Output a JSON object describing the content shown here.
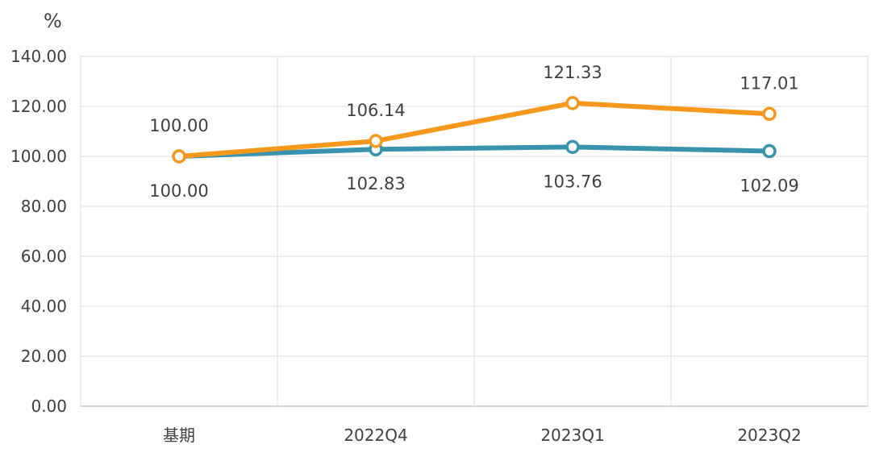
{
  "chart_data": {
    "type": "line",
    "y_unit": "%",
    "categories": [
      "基期",
      "2022Q4",
      "2023Q1",
      "2023Q2"
    ],
    "ylim": [
      0,
      140
    ],
    "y_ticks": [
      "0.00",
      "20.00",
      "40.00",
      "60.00",
      "80.00",
      "100.00",
      "120.00",
      "140.00"
    ],
    "grid": true,
    "legend": "none",
    "series": [
      {
        "color": "#3A93AD",
        "values": [
          100.0,
          102.83,
          103.76,
          102.09
        ],
        "labels": [
          "100.00",
          "102.83",
          "103.76",
          "102.09"
        ],
        "label_position": "below"
      },
      {
        "color": "#F7981D",
        "values": [
          100.0,
          106.14,
          121.33,
          117.01
        ],
        "labels": [
          "100.00",
          "106.14",
          "121.33",
          "117.01"
        ],
        "label_position": "above"
      }
    ]
  }
}
